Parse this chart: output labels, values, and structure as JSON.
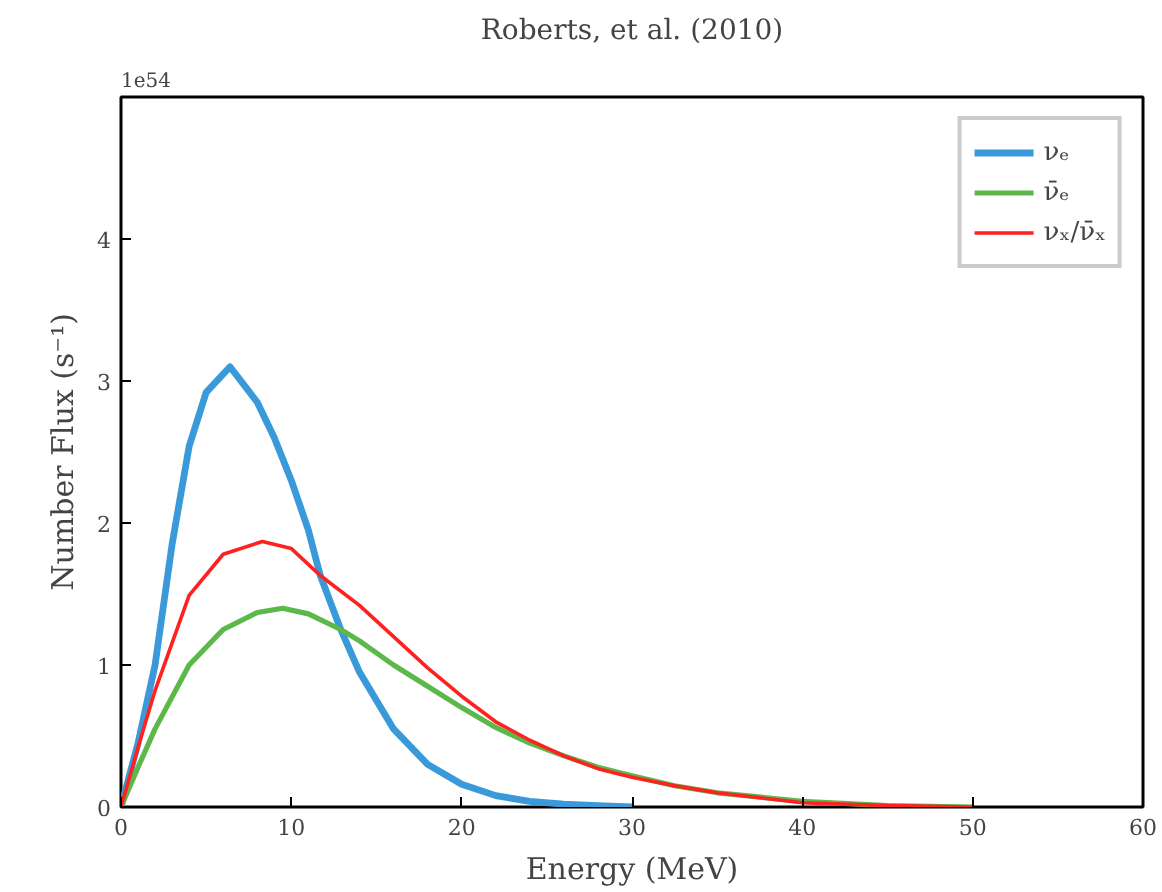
{
  "chart_data": {
    "type": "line",
    "title": "Roberts, et al. (2010)",
    "xlabel": "Energy (MeV)",
    "ylabel": "Number Flux (s⁻¹)",
    "annotations": [
      "1e54"
    ],
    "xlim": [
      0,
      60
    ],
    "ylim": [
      0,
      5
    ],
    "xticks": [
      0,
      10,
      20,
      30,
      40,
      50,
      60
    ],
    "yticks": [
      0,
      1,
      2,
      3,
      4
    ],
    "legend": "top right",
    "line_style": "solid",
    "series": [
      {
        "name": "νₑ",
        "color": "#3a9ad9",
        "x": [
          0,
          1,
          2,
          3,
          4,
          5,
          6.4,
          8,
          9,
          10,
          11,
          11.7,
          12.9,
          14,
          16,
          18,
          20,
          22,
          24,
          26,
          28,
          30
        ],
        "values": [
          0,
          0.45,
          1.0,
          1.85,
          2.54,
          2.92,
          3.1,
          2.85,
          2.6,
          2.3,
          1.95,
          1.63,
          1.25,
          0.95,
          0.55,
          0.3,
          0.16,
          0.08,
          0.04,
          0.02,
          0.01,
          0
        ]
      },
      {
        "name": "ν̄ₑ",
        "color": "#5cb84a",
        "x": [
          0,
          1,
          2,
          4,
          6,
          8,
          9.5,
          11,
          12.9,
          14,
          16,
          18,
          20,
          22,
          24,
          26,
          28,
          30,
          32.5,
          35,
          40,
          45,
          50
        ],
        "values": [
          0,
          0.28,
          0.55,
          1.0,
          1.25,
          1.37,
          1.4,
          1.36,
          1.25,
          1.17,
          1.0,
          0.85,
          0.7,
          0.56,
          0.45,
          0.36,
          0.28,
          0.22,
          0.15,
          0.1,
          0.04,
          0.01,
          0
        ]
      },
      {
        "name": "νₓ/ν̄ₓ",
        "color": "#ff2020",
        "x": [
          0,
          1,
          2,
          4,
          6,
          8.3,
          10,
          11.7,
          14,
          16,
          18,
          20,
          22,
          24,
          26,
          28,
          30,
          32.5,
          35,
          40,
          45,
          50
        ],
        "values": [
          0,
          0.42,
          0.82,
          1.49,
          1.78,
          1.87,
          1.82,
          1.63,
          1.42,
          1.2,
          0.98,
          0.78,
          0.6,
          0.47,
          0.36,
          0.27,
          0.21,
          0.15,
          0.1,
          0.03,
          0.01,
          0
        ]
      }
    ]
  }
}
